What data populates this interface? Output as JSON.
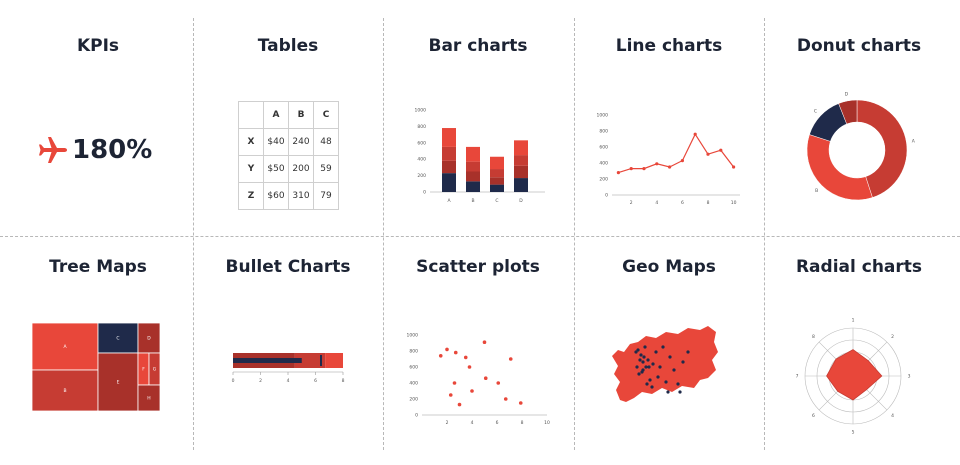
{
  "panels": [
    {
      "title": "KPIs"
    },
    {
      "title": "Tables"
    },
    {
      "title": "Bar charts"
    },
    {
      "title": "Line charts"
    },
    {
      "title": "Donut charts"
    },
    {
      "title": "Tree Maps"
    },
    {
      "title": "Bullet Charts"
    },
    {
      "title": "Scatter plots"
    },
    {
      "title": "Geo Maps"
    },
    {
      "title": "Radial charts"
    }
  ],
  "kpi": {
    "value": "180%",
    "icon": "airplane-icon",
    "color": "#e8473a"
  },
  "table": {
    "columns": [
      "",
      "A",
      "B",
      "C"
    ],
    "rows": [
      [
        "X",
        "$40",
        "240",
        "48"
      ],
      [
        "Y",
        "$50",
        "200",
        "59"
      ],
      [
        "Z",
        "$60",
        "310",
        "79"
      ]
    ]
  },
  "colors": {
    "red": "#e8473a",
    "dark_red": "#a8312a",
    "mid_red": "#c63c33",
    "navy": "#1f2a4a",
    "text": "#1d2434"
  },
  "chart_data": [
    {
      "type": "bar",
      "categories": [
        "A",
        "B",
        "C",
        "D"
      ],
      "yticks": [
        "0",
        "200",
        "400",
        "600",
        "800",
        "1000"
      ],
      "ylim": [
        0,
        1000
      ],
      "series": [
        {
          "values": [
            230,
            130,
            90,
            170
          ]
        },
        {
          "values": [
            150,
            120,
            90,
            150
          ]
        },
        {
          "values": [
            170,
            120,
            100,
            130
          ]
        },
        {
          "values": [
            230,
            180,
            150,
            180
          ]
        }
      ]
    },
    {
      "type": "line",
      "x": [
        1,
        2,
        3,
        4,
        5,
        6,
        7,
        8,
        9,
        10
      ],
      "values": [
        280,
        330,
        330,
        390,
        350,
        430,
        760,
        510,
        560,
        350
      ],
      "xticks": [
        "2",
        "4",
        "6",
        "8",
        "10"
      ],
      "yticks": [
        "0",
        "200",
        "400",
        "600",
        "800",
        "1000"
      ],
      "ylim": [
        0,
        1000
      ]
    },
    {
      "type": "pie",
      "categories": [
        "A",
        "B",
        "C",
        "D"
      ],
      "values": [
        45,
        35,
        14,
        6
      ]
    },
    {
      "type": "heatmap",
      "categories": [
        "A",
        "B",
        "C",
        "D",
        "E",
        "F",
        "G",
        "H"
      ],
      "values": [
        35,
        30,
        10,
        8,
        9,
        4,
        3,
        2
      ]
    },
    {
      "type": "bar",
      "xticks": [
        "0",
        "2",
        "4",
        "6",
        "8"
      ],
      "xlim": [
        0,
        8
      ],
      "values": [
        5
      ],
      "target": 6.4,
      "ranges": [
        4.5,
        6.7,
        8.5
      ]
    },
    {
      "type": "scatter",
      "x": [
        1.5,
        2.0,
        2.7,
        3.5,
        3.8,
        5.0,
        5.1,
        6.1,
        3.0,
        2.6,
        2.3,
        4.0,
        6.7,
        7.1,
        7.9
      ],
      "y": [
        740,
        820,
        780,
        720,
        600,
        910,
        460,
        400,
        130,
        400,
        250,
        300,
        200,
        700,
        150
      ],
      "xticks": [
        "2",
        "4",
        "6",
        "8",
        "10"
      ],
      "yticks": [
        "0",
        "200",
        "400",
        "600",
        "800",
        "1000"
      ],
      "xlim": [
        0,
        10
      ],
      "ylim": [
        0,
        1000
      ]
    },
    {
      "type": "scatter",
      "x": [
        28,
        30,
        33,
        32,
        35,
        36,
        38,
        34,
        31,
        40,
        42,
        45,
        48,
        52,
        58,
        62,
        66,
        70,
        75,
        80,
        44,
        39,
        37,
        29,
        55,
        60,
        72,
        35,
        41,
        50
      ],
      "y": [
        30,
        28,
        33,
        38,
        40,
        35,
        45,
        50,
        52,
        38,
        58,
        42,
        30,
        45,
        60,
        35,
        48,
        62,
        40,
        30,
        65,
        62,
        25,
        45,
        25,
        70,
        70,
        48,
        45,
        55
      ]
    },
    {
      "type": "area",
      "axis_labels": [
        "1",
        "2",
        "3",
        "4",
        "5",
        "6",
        "7",
        "8"
      ],
      "values": [
        0.55,
        0.45,
        0.6,
        0.4,
        0.5,
        0.45,
        0.55,
        0.5
      ],
      "max": 1
    }
  ]
}
